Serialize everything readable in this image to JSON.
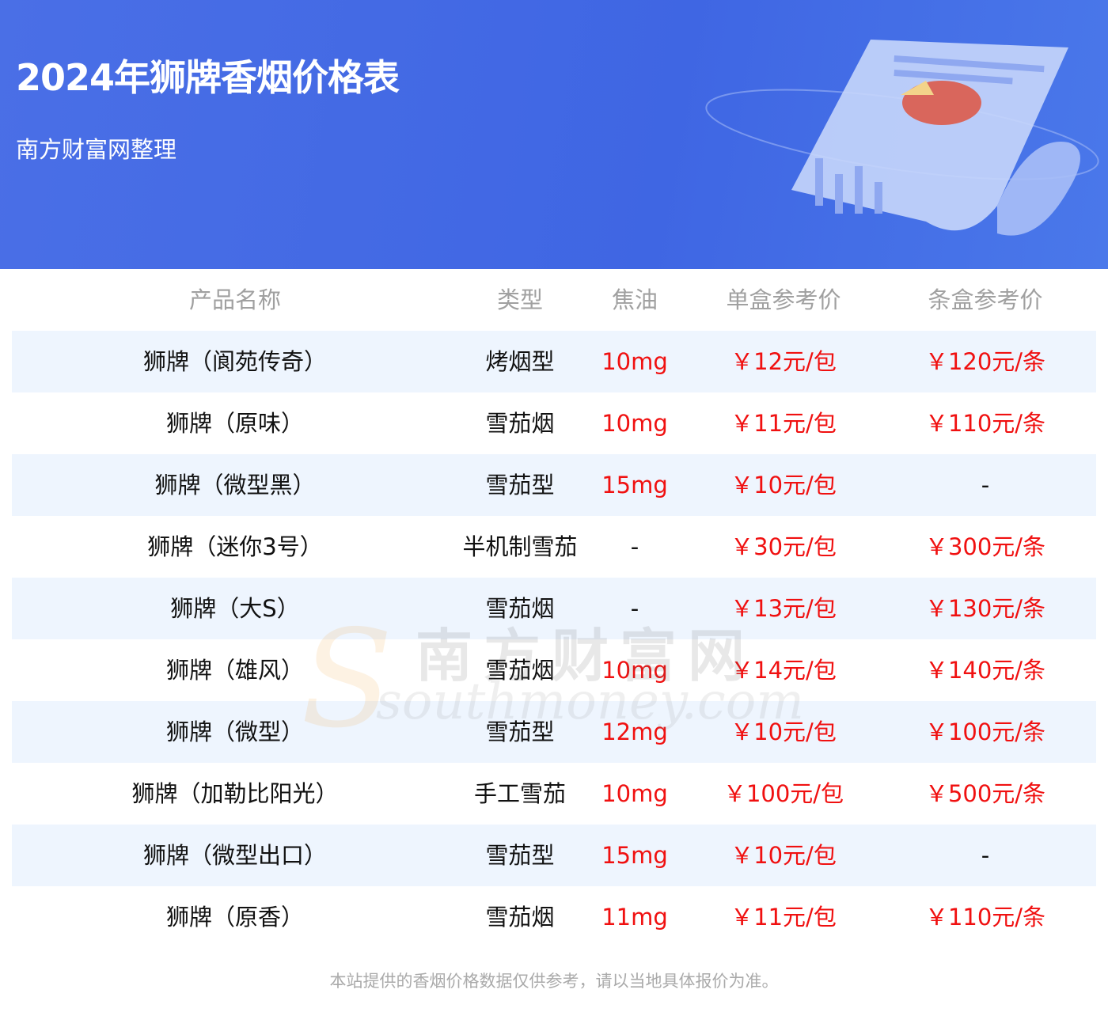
{
  "header": {
    "title": "2024年狮牌香烟价格表",
    "subtitle": "南方财富网整理"
  },
  "table": {
    "columns": [
      "产品名称",
      "类型",
      "焦油",
      "单盒参考价",
      "条盒参考价"
    ],
    "rows": [
      [
        "狮牌（阆苑传奇）",
        "烤烟型",
        "10mg",
        "￥12元/包",
        "￥120元/条"
      ],
      [
        "狮牌（原味）",
        "雪茄烟",
        "10mg",
        "￥11元/包",
        "￥110元/条"
      ],
      [
        "狮牌（微型黑）",
        "雪茄型",
        "15mg",
        "￥10元/包",
        "-"
      ],
      [
        "狮牌（迷你3号）",
        "半机制雪茄",
        "-",
        "￥30元/包",
        "￥300元/条"
      ],
      [
        "狮牌（大S）",
        "雪茄烟",
        "-",
        "￥13元/包",
        "￥130元/条"
      ],
      [
        "狮牌（雄风）",
        "雪茄烟",
        "10mg",
        "￥14元/包",
        "￥140元/条"
      ],
      [
        "狮牌（微型）",
        "雪茄型",
        "12mg",
        "￥10元/包",
        "￥100元/条"
      ],
      [
        "狮牌（加勒比阳光）",
        "手工雪茄",
        "10mg",
        "￥100元/包",
        "￥500元/条"
      ],
      [
        "狮牌（微型出口）",
        "雪茄型",
        "15mg",
        "￥10元/包",
        "-"
      ],
      [
        "狮牌（原香）",
        "雪茄烟",
        "11mg",
        "￥11元/包",
        "￥110元/条"
      ]
    ]
  },
  "watermark": {
    "cn": "南方财富网",
    "en": "southmoney.com",
    "s": "S"
  },
  "footer": {
    "note": "本站提供的香烟价格数据仅供参考，请以当地具体报价为准。"
  },
  "colors": {
    "banner": "#4169e1",
    "price": "#f01010",
    "row_alt": "#eef5fe"
  }
}
